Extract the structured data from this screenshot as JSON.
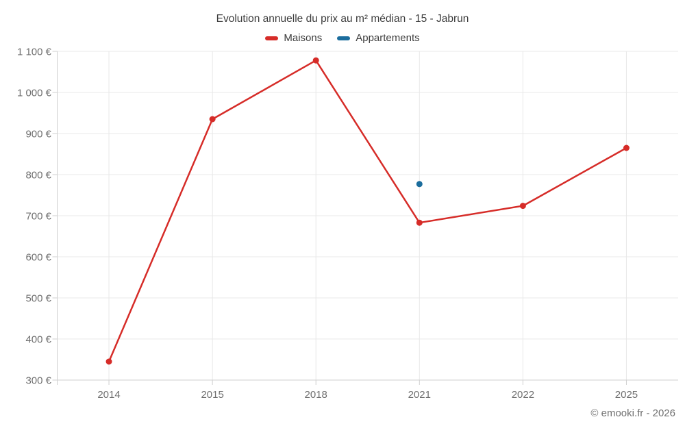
{
  "chart": {
    "title": "Evolution annuelle du prix au m² médian - 15 - Jabrun"
  },
  "footer": {
    "copyright": "© emooki.fr - 2026"
  },
  "colors": {
    "maisons": "#d62c28",
    "appartements": "#1b6d9d",
    "gridline": "#e8e8e8",
    "axis": "#cfcfcf",
    "tick_label": "#6f6f6f",
    "title_text": "#3c3c3c"
  },
  "chart_data": {
    "type": "line",
    "title": "Evolution annuelle du prix au m² médian - 15 - Jabrun",
    "categories": [
      "2014",
      "2015",
      "2018",
      "2021",
      "2022",
      "2025"
    ],
    "series": [
      {
        "name": "Maisons",
        "color": "#d62c28",
        "values": [
          345,
          935,
          1078,
          683,
          724,
          865
        ]
      },
      {
        "name": "Appartements",
        "color": "#1b6d9d",
        "values": [
          null,
          null,
          null,
          777,
          null,
          null
        ]
      }
    ],
    "xlabel": "",
    "ylabel": "",
    "ylim": [
      300,
      1100
    ],
    "ytick_step": 100,
    "ytick_labels": [
      "300 €",
      "400 €",
      "500 €",
      "600 €",
      "700 €",
      "800 €",
      "900 €",
      "1 000 €",
      "1 100 €"
    ],
    "y_suffix": " €",
    "grid": true,
    "legend_position": "top"
  }
}
